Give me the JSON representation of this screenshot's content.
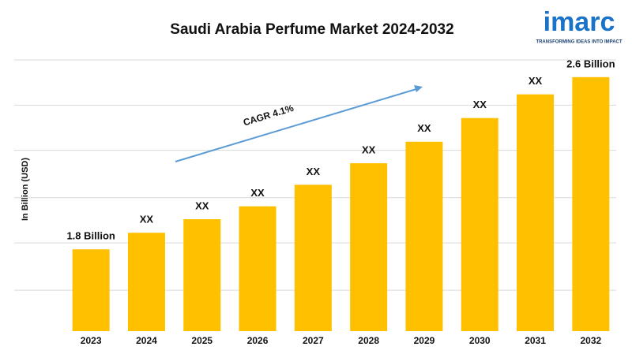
{
  "chart_data": {
    "type": "bar",
    "title": "Saudi Arabia Perfume Market 2024-2032",
    "ylabel": "In Billion (USD)",
    "annotation": "CAGR 4.1%",
    "logo": {
      "name": "imarc",
      "tagline": "TRANSFORMING IDEAS INTO IMPACT"
    },
    "categories": [
      "2023",
      "2024",
      "2025",
      "2026",
      "2027",
      "2028",
      "2029",
      "2030",
      "2031",
      "2032"
    ],
    "values": [
      1.8,
      1.877,
      1.94,
      2.0,
      2.1,
      2.2,
      2.3,
      2.41,
      2.52,
      2.6
    ],
    "value_labels": [
      "1.8 Billion",
      "XX",
      "XX",
      "XX",
      "XX",
      "XX",
      "XX",
      "XX",
      "XX",
      "2.6 Billion"
    ],
    "color": "#ffc000",
    "ylim": [
      1.42,
      2.68
    ],
    "yticks": [
      1.61,
      1.83,
      2.04,
      2.26,
      2.47,
      2.68
    ],
    "grid": true
  }
}
